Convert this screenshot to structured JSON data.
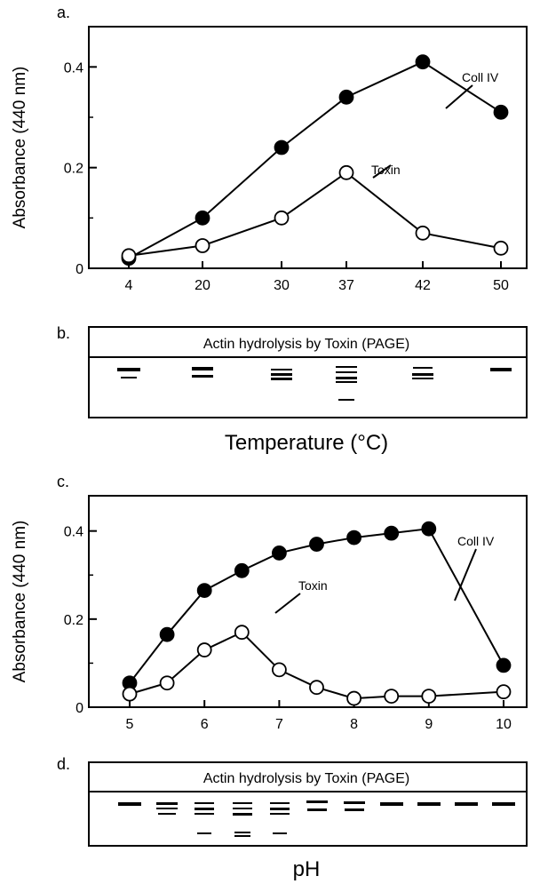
{
  "panels": {
    "a": {
      "label": "a."
    },
    "b": {
      "label": "b.",
      "title": "Actin hydrolysis by Toxin  (PAGE)"
    },
    "c": {
      "label": "c."
    },
    "d": {
      "label": "d.",
      "title": "Actin hydrolysis by Toxin  (PAGE)"
    }
  },
  "temperature_xlabel": "Temperature (°C)",
  "ph_xlabel": "pH",
  "chart_data": [
    {
      "type": "line",
      "panel": "a",
      "ylabel": "Absorbance (440 nm)",
      "ylim": [
        0,
        0.48
      ],
      "yticks": [
        "0",
        "0.2",
        "0.4"
      ],
      "categories": [
        "4",
        "20",
        "30",
        "37",
        "42",
        "50"
      ],
      "series": [
        {
          "name": "Coll  IV",
          "marker": "filled-circle",
          "values": [
            0.02,
            0.1,
            0.24,
            0.34,
            0.41,
            0.31
          ]
        },
        {
          "name": "Toxin",
          "marker": "open-circle",
          "values": [
            0.025,
            0.045,
            0.1,
            0.19,
            0.07,
            0.04
          ]
        }
      ]
    },
    {
      "type": "line",
      "panel": "c",
      "ylabel": "Absorbance (440 nm)",
      "ylim": [
        0,
        0.48
      ],
      "yticks": [
        "0",
        "0.2",
        "0.4"
      ],
      "xlim": [
        4.55,
        10.45
      ],
      "xticks": [
        "5",
        "6",
        "7",
        "8",
        "9",
        "10"
      ],
      "series": [
        {
          "name": "Coll  IV",
          "marker": "filled-circle",
          "x": [
            5,
            5.5,
            6,
            6.5,
            7,
            7.5,
            8,
            8.5,
            9,
            10
          ],
          "y": [
            0.055,
            0.165,
            0.265,
            0.31,
            0.35,
            0.37,
            0.385,
            0.395,
            0.405,
            0.095
          ]
        },
        {
          "name": "Toxin",
          "marker": "open-circle",
          "x": [
            5,
            5.5,
            6,
            6.5,
            7,
            7.5,
            8,
            8.5,
            9,
            10
          ],
          "y": [
            0.03,
            0.055,
            0.13,
            0.17,
            0.085,
            0.045,
            0.02,
            0.025,
            0.025,
            0.035
          ]
        }
      ]
    }
  ]
}
